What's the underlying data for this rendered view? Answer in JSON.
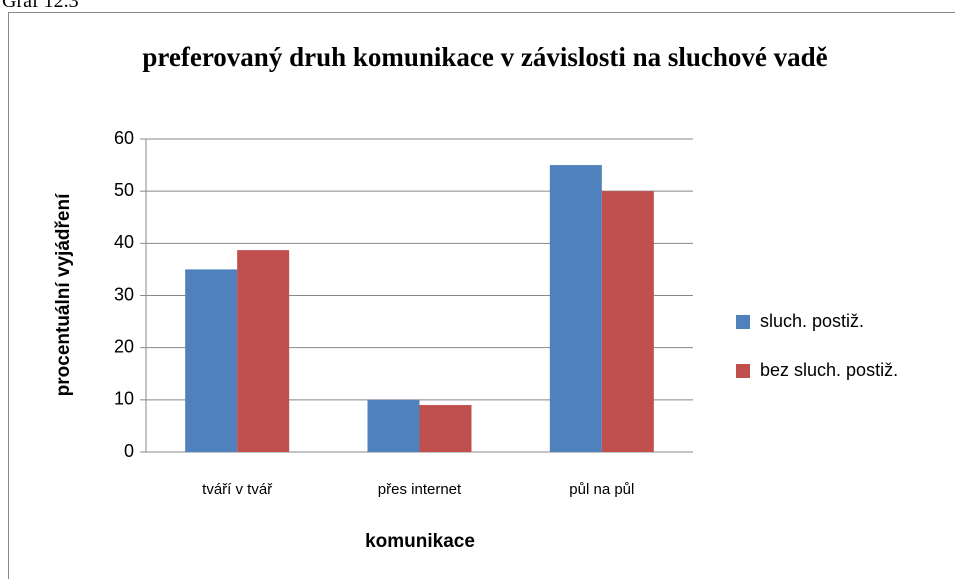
{
  "caption": "Graf 12.3",
  "chart_data": {
    "type": "bar",
    "title": "preferovaný druh komunikace v závislosti na sluchové vadě",
    "xlabel": "komunikace",
    "ylabel": "procentuální vyjádření",
    "categories": [
      "tváří v tvář",
      "přes internet",
      "půl na půl"
    ],
    "series": [
      {
        "name": "sluch. postiž.",
        "color": "#4f81bd",
        "values": [
          35,
          10,
          55
        ]
      },
      {
        "name": "bez sluch. postiž.",
        "color": "#c0504d",
        "values": [
          38.7,
          9,
          50
        ]
      }
    ],
    "ylim": [
      0,
      60
    ],
    "yticks": [
      0,
      10,
      20,
      30,
      40,
      50,
      60
    ],
    "grid": true,
    "legend": "right"
  }
}
